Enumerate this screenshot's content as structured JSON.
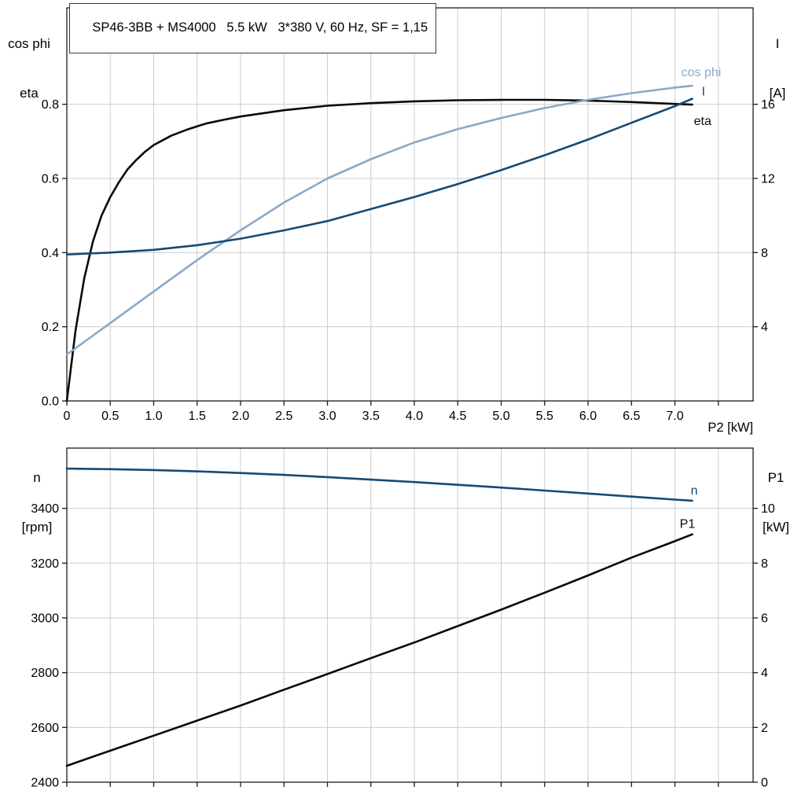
{
  "header": {
    "title": "SP46-3BB + MS4000   5.5 kW   3*380 V, 60 Hz, SF = 1,15"
  },
  "chart_data": [
    {
      "type": "line",
      "title": "SP46-3BB + MS4000   5.5 kW   3*380 V, 60 Hz, SF = 1,15",
      "xlabel": "P2 [kW]",
      "ylabel_left_lines": [
        "cos phi",
        "eta"
      ],
      "ylabel_right_lines": [
        "I",
        "[A]"
      ],
      "xlim": [
        0,
        7.9
      ],
      "ylim_left": [
        0,
        1.06
      ],
      "ylim_right": [
        0,
        21.2
      ],
      "grid": true,
      "legend_position": "curve-end-labels",
      "xticks": [
        0,
        0.5,
        1,
        1.5,
        2,
        2.5,
        3,
        3.5,
        4,
        4.5,
        5,
        5.5,
        6,
        6.5,
        7,
        7.5
      ],
      "xtick_labels": [
        "0",
        "0.5",
        "1.0",
        "1.5",
        "2.0",
        "2.5",
        "3.0",
        "3.5",
        "4.0",
        "4.5",
        "5.0",
        "5.5",
        "6.0",
        "6.5",
        "7.0",
        ""
      ],
      "yticks_left": [
        0,
        0.2,
        0.4,
        0.6,
        0.8
      ],
      "ytick_labels_left": [
        "0.0",
        "0.2",
        "0.4",
        "0.6",
        "0.8"
      ],
      "yticks_right": [
        4,
        8,
        12,
        16
      ],
      "ytick_labels_right": [
        "4",
        "8",
        "12",
        "16"
      ],
      "series": [
        {
          "name": "eta",
          "axis": "left",
          "color": "#0a0a0a",
          "x": [
            0,
            0.1,
            0.2,
            0.3,
            0.4,
            0.5,
            0.6,
            0.7,
            0.8,
            0.9,
            1,
            1.2,
            1.4,
            1.6,
            1.8,
            2,
            2.5,
            3,
            3.5,
            4,
            4.5,
            5,
            5.5,
            6,
            6.5,
            7,
            7.2
          ],
          "y": [
            0,
            0.19,
            0.33,
            0.43,
            0.5,
            0.55,
            0.59,
            0.625,
            0.65,
            0.672,
            0.69,
            0.715,
            0.733,
            0.748,
            0.758,
            0.767,
            0.784,
            0.796,
            0.803,
            0.808,
            0.811,
            0.812,
            0.812,
            0.81,
            0.806,
            0.801,
            0.799
          ]
        },
        {
          "name": "cos phi",
          "axis": "left",
          "color": "#8aa9c9",
          "x": [
            0,
            0.5,
            1,
            1.5,
            2,
            2.5,
            3,
            3.5,
            4,
            4.5,
            5,
            5.5,
            6,
            6.5,
            7,
            7.2
          ],
          "y": [
            0.125,
            0.21,
            0.295,
            0.38,
            0.46,
            0.535,
            0.6,
            0.652,
            0.697,
            0.733,
            0.763,
            0.79,
            0.812,
            0.83,
            0.845,
            0.85
          ]
        },
        {
          "name": "I",
          "axis": "right",
          "color": "#174a73",
          "x": [
            0,
            0.5,
            1,
            1.5,
            2,
            2.5,
            3,
            3.5,
            4,
            4.5,
            5,
            5.5,
            6,
            6.5,
            7,
            7.2
          ],
          "y": [
            7.9,
            8.0,
            8.15,
            8.4,
            8.75,
            9.2,
            9.7,
            10.35,
            11.0,
            11.7,
            12.45,
            13.25,
            14.1,
            15.0,
            15.9,
            16.3
          ]
        }
      ]
    },
    {
      "type": "line",
      "title": "",
      "xlabel": "",
      "ylabel_left_lines": [
        "n",
        "[rpm]"
      ],
      "ylabel_right_lines": [
        "P1",
        "[kW]"
      ],
      "xlim": [
        0,
        7.9
      ],
      "ylim_left": [
        2400,
        3620
      ],
      "ylim_right": [
        0,
        12.2
      ],
      "grid": true,
      "legend_position": "curve-end-labels",
      "xticks": [
        0,
        0.5,
        1,
        1.5,
        2,
        2.5,
        3,
        3.5,
        4,
        4.5,
        5,
        5.5,
        6,
        6.5,
        7,
        7.5
      ],
      "xtick_labels": [],
      "yticks_left": [
        2400,
        2600,
        2800,
        3000,
        3200,
        3400
      ],
      "ytick_labels_left": [
        "2400",
        "2600",
        "2800",
        "3000",
        "3200",
        "3400"
      ],
      "yticks_right": [
        0,
        2,
        4,
        6,
        8,
        10
      ],
      "ytick_labels_right": [
        "0",
        "2",
        "4",
        "6",
        "8",
        "10"
      ],
      "series": [
        {
          "name": "n",
          "axis": "left",
          "color": "#174a73",
          "x": [
            0,
            0.5,
            1,
            1.5,
            2,
            2.5,
            3,
            3.5,
            4,
            4.5,
            5,
            5.5,
            6,
            6.5,
            7,
            7.2
          ],
          "y": [
            3545,
            3543,
            3540,
            3535,
            3529,
            3522,
            3514,
            3505,
            3496,
            3486,
            3476,
            3465,
            3454,
            3443,
            3432,
            3428
          ]
        },
        {
          "name": "P1",
          "axis": "right",
          "color": "#0a0a0a",
          "x": [
            0,
            0.5,
            1,
            1.5,
            2,
            2.5,
            3,
            3.5,
            4,
            4.5,
            5,
            5.5,
            6,
            6.5,
            7,
            7.2
          ],
          "y": [
            0.6,
            1.15,
            1.7,
            2.25,
            2.8,
            3.38,
            3.95,
            4.53,
            5.1,
            5.7,
            6.3,
            6.92,
            7.55,
            8.2,
            8.8,
            9.05
          ]
        }
      ]
    }
  ]
}
